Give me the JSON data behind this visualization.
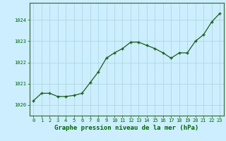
{
  "x": [
    0,
    1,
    2,
    3,
    4,
    5,
    6,
    7,
    8,
    9,
    10,
    11,
    12,
    13,
    14,
    15,
    16,
    17,
    18,
    19,
    20,
    21,
    22,
    23
  ],
  "y": [
    1020.2,
    1020.55,
    1020.55,
    1020.4,
    1020.4,
    1020.45,
    1020.55,
    1021.05,
    1021.55,
    1022.2,
    1022.45,
    1022.65,
    1022.95,
    1022.95,
    1022.8,
    1022.65,
    1022.45,
    1022.2,
    1022.45,
    1022.45,
    1023.0,
    1023.3,
    1023.9,
    1024.3
  ],
  "line_color": "#1a5c1a",
  "marker": "+",
  "marker_size": 3.5,
  "marker_linewidth": 1.0,
  "line_width": 0.9,
  "bg_color": "#cceeff",
  "grid_color": "#aad4d4",
  "xlabel": "Graphe pression niveau de la mer (hPa)",
  "xlabel_color": "#006600",
  "xlabel_fontsize": 6.5,
  "tick_color": "#006600",
  "tick_fontsize": 5.0,
  "ytick_labels": [
    "1020",
    "1021",
    "1022",
    "1023",
    "1024"
  ],
  "ytick_values": [
    1020,
    1021,
    1022,
    1023,
    1024
  ],
  "ylim": [
    1019.5,
    1024.8
  ],
  "xlim": [
    -0.5,
    23.5
  ],
  "xtick_values": [
    0,
    1,
    2,
    3,
    4,
    5,
    6,
    7,
    8,
    9,
    10,
    11,
    12,
    13,
    14,
    15,
    16,
    17,
    18,
    19,
    20,
    21,
    22,
    23
  ]
}
